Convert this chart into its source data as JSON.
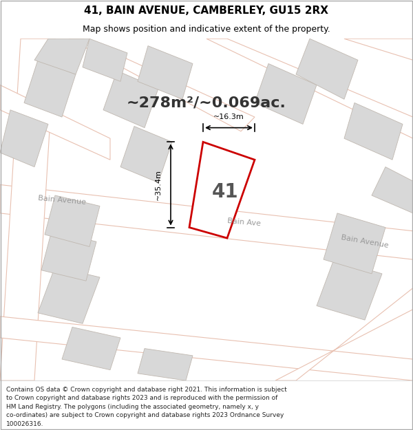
{
  "title": "41, BAIN AVENUE, CAMBERLEY, GU15 2RX",
  "subtitle": "Map shows position and indicative extent of the property.",
  "area_text": "~278m²/~0.069ac.",
  "number_label": "41",
  "dim_width": "~16.3m",
  "dim_height": "~35.4m",
  "street_label_left": "Bain Avenue",
  "street_label_mid": "Bain Ave",
  "street_label_right": "Bain Avenue",
  "footer_lines": [
    "Contains OS data © Crown copyright and database right 2021. This information is subject",
    "to Crown copyright and database rights 2023 and is reproduced with the permission of",
    "HM Land Registry. The polygons (including the associated geometry, namely x, y",
    "co-ordinates) are subject to Crown copyright and database rights 2023 Ordnance Survey",
    "100026316."
  ],
  "bg_color": "#f0eeeb",
  "road_color": "#ffffff",
  "building_fill": "#d8d8d8",
  "building_edge": "#c0b8b0",
  "plot_fill": "#ffffff",
  "plot_edge": "#cc0000",
  "road_outline": "#e8c0b0",
  "title_fontsize": 11,
  "subtitle_fontsize": 9,
  "footer_fontsize": 6.5,
  "area_fontsize": 16,
  "street_fontsize": 8,
  "number_fontsize": 20
}
